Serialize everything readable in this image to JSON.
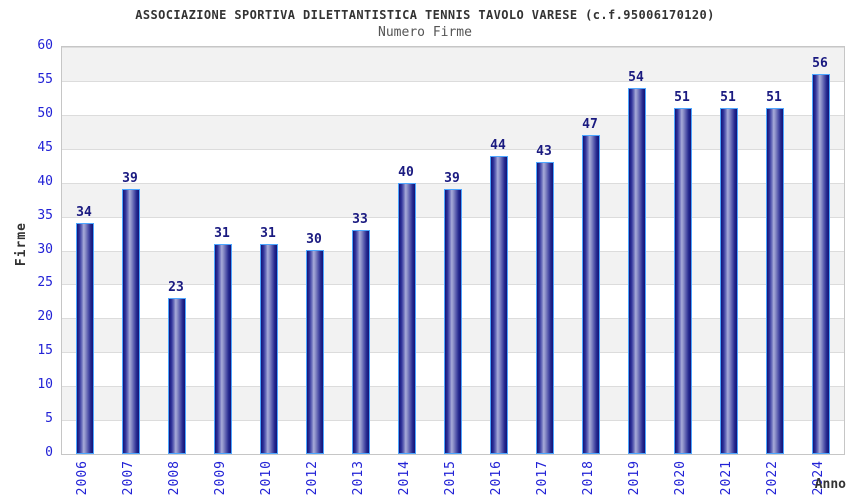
{
  "chart_data": {
    "type": "bar",
    "title": "ASSOCIAZIONE SPORTIVA DILETTANTISTICA TENNIS TAVOLO VARESE (c.f.95006170120)",
    "subtitle": "Numero Firme",
    "xlabel": "Anno",
    "ylabel": "Firme",
    "categories": [
      "2006",
      "2007",
      "2008",
      "2009",
      "2010",
      "2012",
      "2013",
      "2014",
      "2015",
      "2016",
      "2017",
      "2018",
      "2019",
      "2020",
      "2021",
      "2022",
      "2024"
    ],
    "values": [
      34,
      39,
      23,
      31,
      31,
      30,
      33,
      40,
      39,
      44,
      43,
      47,
      54,
      51,
      51,
      51,
      56
    ],
    "ylim": [
      0,
      60
    ],
    "ytick_step": 5,
    "yticks": [
      0,
      5,
      10,
      15,
      20,
      25,
      30,
      35,
      40,
      45,
      50,
      55,
      60
    ],
    "grid": "horizontal-bands-alternating",
    "legend": "none",
    "colors": {
      "bar_dark": "#131378",
      "bar_light": "#a8abd9",
      "bar_border": "#4da6ff",
      "axis_tick_label": "#2222d6",
      "value_label": "#1a1a80",
      "band_gray": "#f2f2f2",
      "band_white": "#ffffff",
      "gridline": "#dcdcdc",
      "plot_border": "#c6c6c6",
      "title_color": "#333333",
      "subtitle_color": "#555555",
      "axis_title_color": "#333333"
    }
  }
}
